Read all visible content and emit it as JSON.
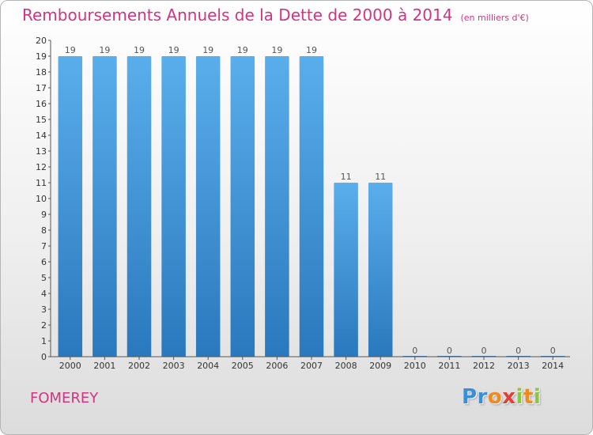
{
  "title": "Remboursements Annuels de la Dette de 2000 à 2014",
  "subtitle": "(en milliers d'€)",
  "commune": "FOMEREY",
  "logo": {
    "text": "Proxiti",
    "letters": [
      {
        "ch": "P",
        "color": "#3a8fd8"
      },
      {
        "ch": "r",
        "color": "#3a8fd8"
      },
      {
        "ch": "o",
        "color": "#f08a1e"
      },
      {
        "ch": "x",
        "color": "#e0403a"
      },
      {
        "ch": "i",
        "color": "#8cc63f"
      },
      {
        "ch": "t",
        "color": "#f08a1e"
      },
      {
        "ch": "i",
        "color": "#8cc63f"
      }
    ]
  },
  "colors": {
    "bar_top": "#5aaeeb",
    "bar_bottom": "#2a78bd",
    "title": "#d2347f",
    "axis_text": "#333333",
    "label_text": "#555555"
  },
  "chart_data": {
    "type": "bar",
    "title": "Remboursements Annuels de la Dette de 2000 à 2014",
    "subtitle": "(en milliers d'€)",
    "categories": [
      "2000",
      "2001",
      "2002",
      "2003",
      "2004",
      "2005",
      "2006",
      "2007",
      "2008",
      "2009",
      "2010",
      "2011",
      "2012",
      "2013",
      "2014"
    ],
    "values": [
      19,
      19,
      19,
      19,
      19,
      19,
      19,
      19,
      11,
      11,
      0,
      0,
      0,
      0,
      0
    ],
    "value_labels": [
      "19",
      "19",
      "19",
      "19",
      "19",
      "19",
      "19",
      "19",
      "11",
      "11",
      "0",
      "0",
      "0",
      "0",
      "0"
    ],
    "yticks": [
      0,
      1,
      2,
      3,
      4,
      5,
      6,
      7,
      8,
      9,
      10,
      11,
      12,
      13,
      14,
      15,
      16,
      17,
      18,
      19,
      20
    ],
    "ylim": [
      0,
      20
    ],
    "grid": false
  }
}
